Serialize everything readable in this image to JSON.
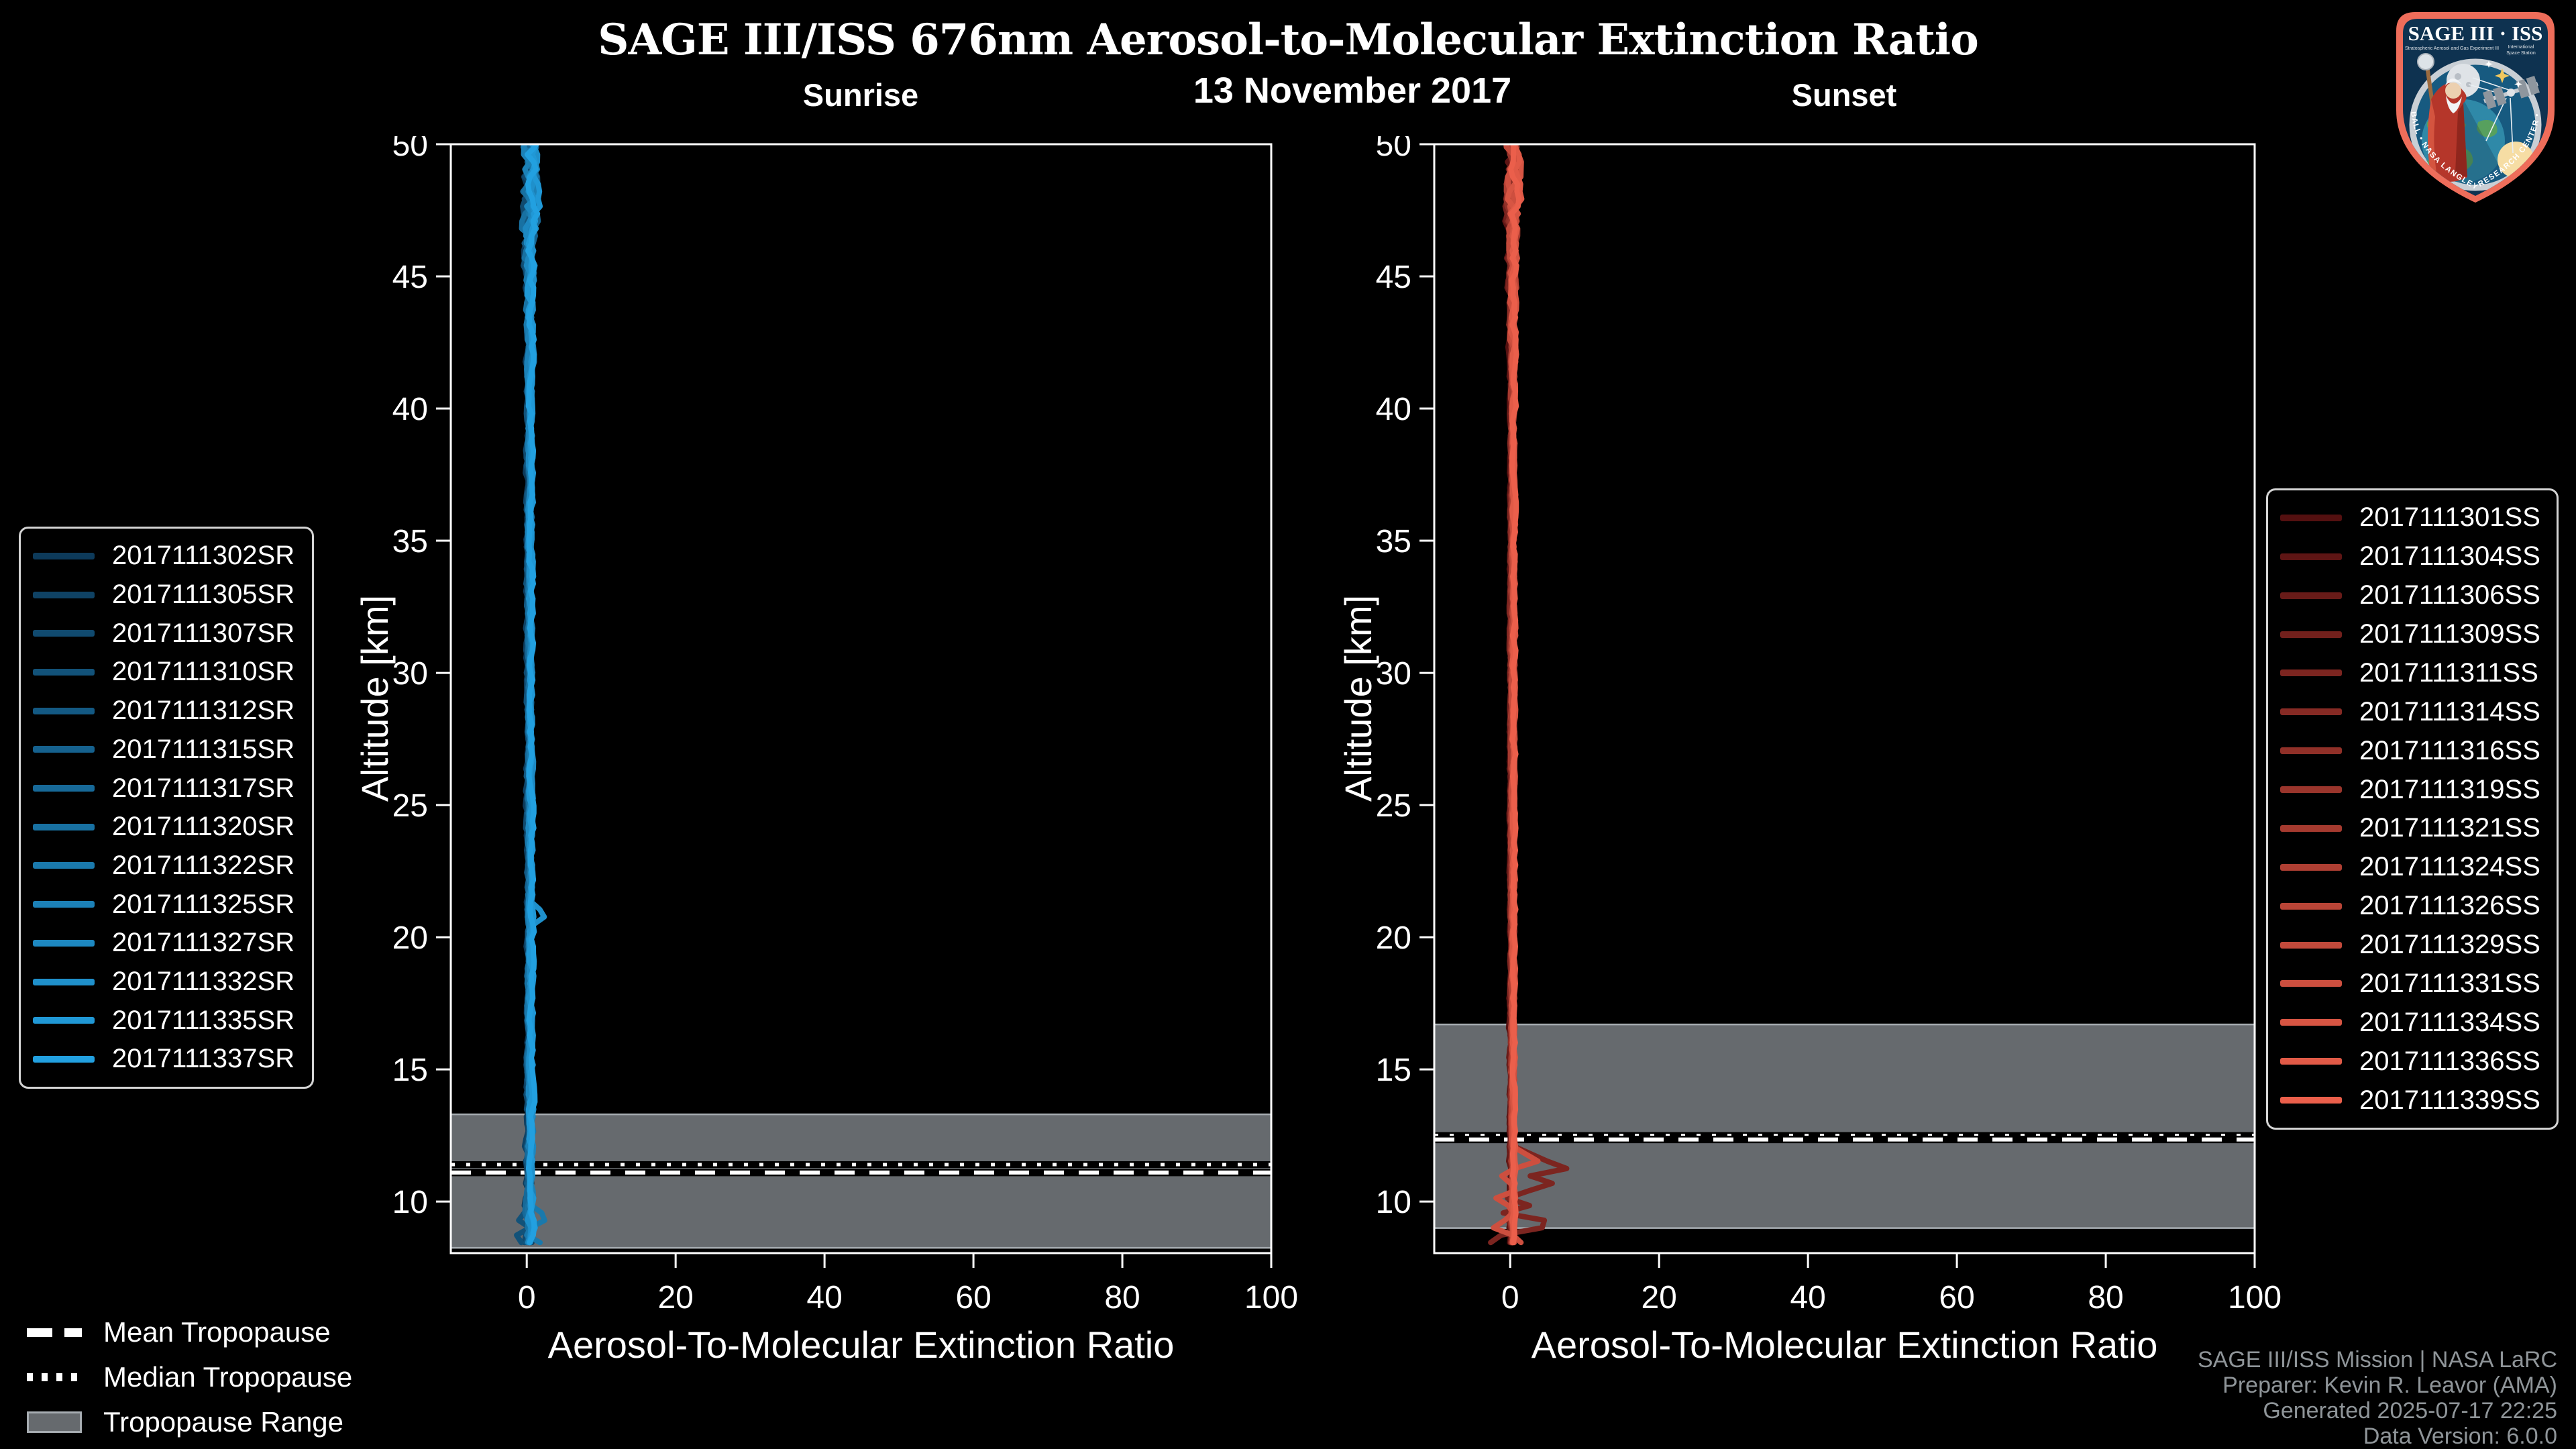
{
  "header": {
    "title": "SAGE III/ISS 676nm Aerosol-to-Molecular Extinction Ratio",
    "date": "13 November 2017"
  },
  "chart_data": {
    "type": "line",
    "title": "SAGE III/ISS 676nm Aerosol-to-Molecular Extinction Ratio",
    "subtitle": "13 November 2017",
    "style": {
      "background": "#000000",
      "axis_color": "#ffffff",
      "band_color": "#666a6e",
      "band_edge_color": "#a7adb2",
      "mean_line_color": "#ffffff",
      "mean_line_underlay": "#000000",
      "median_line_color": "#ffffff",
      "median_line_underlay": "#000000"
    },
    "panels": [
      {
        "id": "sunrise",
        "title": "Sunrise",
        "xlabel": "Aerosol-To-Molecular Extinction Ratio",
        "ylabel": "Altitude [km]",
        "xlim": [
          -10.2,
          100
        ],
        "ylim": [
          8.05,
          50
        ],
        "xticks": [
          0,
          20,
          40,
          60,
          80,
          100
        ],
        "yticks": [
          10,
          15,
          20,
          25,
          30,
          35,
          40,
          45,
          50
        ],
        "grid": false,
        "legend_position": "left",
        "tropopause": {
          "mean_km": 11.1,
          "median_km": 11.4,
          "range_km": [
            8.25,
            13.3
          ]
        },
        "noise_seed": 11,
        "profile": {
          "center": 0.4,
          "alt_top": 50.45,
          "alt_bottom": 8.2,
          "step": 0.28,
          "amps": [
            [
              50.45,
              1.6
            ],
            [
              47,
              1.5
            ],
            [
              44.5,
              0.8
            ],
            [
              40,
              0.5
            ],
            [
              15,
              0.5
            ],
            [
              12,
              0.7
            ],
            [
              8.2,
              0.8
            ]
          ]
        },
        "features": [
          {
            "series_index": 11,
            "points": [
              [
                21.35,
                0.5
              ],
              [
                21.05,
                1.7
              ],
              [
                20.8,
                2.5
              ],
              [
                20.55,
                1.1
              ],
              [
                20.3,
                0.45
              ]
            ]
          },
          {
            "series_index": 8,
            "points": [
              [
                9.9,
                0.4
              ],
              [
                9.6,
                1.9
              ],
              [
                9.35,
                2.7
              ],
              [
                9.1,
                1.2
              ],
              [
                8.85,
                -0.8
              ],
              [
                8.6,
                0.9
              ],
              [
                8.35,
                2.4
              ],
              [
                8.2,
                2.8
              ]
            ]
          },
          {
            "series_index": 3,
            "points": [
              [
                9.6,
                -0.3
              ],
              [
                9.3,
                -1.2
              ],
              [
                9.0,
                0.5
              ],
              [
                8.7,
                -1.5
              ],
              [
                8.4,
                -0.5
              ],
              [
                8.2,
                0.4
              ]
            ]
          }
        ],
        "series": [
          {
            "label": "2017111302SR",
            "color": "#0d3a5a"
          },
          {
            "label": "2017111305SR",
            "color": "#0f4264"
          },
          {
            "label": "2017111307SR",
            "color": "#104a6f"
          },
          {
            "label": "2017111310SR",
            "color": "#125279"
          },
          {
            "label": "2017111312SR",
            "color": "#135983"
          },
          {
            "label": "2017111315SR",
            "color": "#15618e"
          },
          {
            "label": "2017111317SR",
            "color": "#176998"
          },
          {
            "label": "2017111320SR",
            "color": "#1871a2"
          },
          {
            "label": "2017111322SR",
            "color": "#1a79ac"
          },
          {
            "label": "2017111325SR",
            "color": "#1c81b7"
          },
          {
            "label": "2017111327SR",
            "color": "#1d88c1"
          },
          {
            "label": "2017111332SR",
            "color": "#1f90cb"
          },
          {
            "label": "2017111335SR",
            "color": "#2098d6"
          },
          {
            "label": "2017111337SR",
            "color": "#22a0e0"
          }
        ]
      },
      {
        "id": "sunset",
        "title": "Sunset",
        "xlabel": "Aerosol-To-Molecular Extinction Ratio",
        "ylabel": "Altitude [km]",
        "xlim": [
          -10.2,
          100
        ],
        "ylim": [
          8.05,
          50
        ],
        "xticks": [
          0,
          20,
          40,
          60,
          80,
          100
        ],
        "yticks": [
          10,
          15,
          20,
          25,
          30,
          35,
          40,
          45,
          50
        ],
        "grid": false,
        "legend_position": "right",
        "tropopause": {
          "mean_km": 12.35,
          "median_km": 12.5,
          "range_km": [
            9.0,
            16.7
          ]
        },
        "noise_seed": 97,
        "profile": {
          "center": 0.3,
          "alt_top": 50.45,
          "alt_bottom": 8.2,
          "step": 0.28,
          "amps": [
            [
              50.45,
              1.4
            ],
            [
              47,
              1.2
            ],
            [
              44.5,
              0.7
            ],
            [
              40,
              0.4
            ],
            [
              13,
              0.4
            ],
            [
              8.2,
              0.5
            ]
          ]
        },
        "features": [
          {
            "series_index": 4,
            "points": [
              [
                12.1,
                0.4
              ],
              [
                11.75,
                3.2
              ],
              [
                11.45,
                5.6
              ],
              [
                11.2,
                8.1
              ],
              [
                11.0,
                2.2
              ],
              [
                10.75,
                6.3
              ],
              [
                10.45,
                3.0
              ],
              [
                10.15,
                -0.6
              ],
              [
                9.85,
                2.6
              ],
              [
                9.55,
                -1.2
              ],
              [
                9.3,
                4.6
              ],
              [
                9.0,
                4.3
              ],
              [
                8.7,
                -1.8
              ],
              [
                8.45,
                -2.6
              ],
              [
                8.2,
                1.2
              ]
            ]
          },
          {
            "series_index": 12,
            "points": [
              [
                11.95,
                0.3
              ],
              [
                11.6,
                4.5
              ],
              [
                11.25,
                0.6
              ],
              [
                10.9,
                -1.6
              ],
              [
                10.5,
                1.4
              ],
              [
                10.1,
                -2.2
              ],
              [
                9.7,
                0.9
              ],
              [
                9.3,
                -0.7
              ],
              [
                8.95,
                -2.6
              ],
              [
                8.6,
                2.1
              ],
              [
                8.2,
                0.3
              ]
            ]
          }
        ],
        "series": [
          {
            "label": "2017111301SS",
            "color": "#541010"
          },
          {
            "label": "2017111304SS",
            "color": "#5e1514"
          },
          {
            "label": "2017111306SS",
            "color": "#681b18"
          },
          {
            "label": "2017111309SS",
            "color": "#72201c"
          },
          {
            "label": "2017111311SS",
            "color": "#7c2520"
          },
          {
            "label": "2017111314SS",
            "color": "#862a24"
          },
          {
            "label": "2017111316SS",
            "color": "#903028"
          },
          {
            "label": "2017111319SS",
            "color": "#9a352c"
          },
          {
            "label": "2017111321SS",
            "color": "#a53a2f"
          },
          {
            "label": "2017111324SS",
            "color": "#af3f33"
          },
          {
            "label": "2017111326SS",
            "color": "#b94537"
          },
          {
            "label": "2017111329SS",
            "color": "#c34a3b"
          },
          {
            "label": "2017111331SS",
            "color": "#cd4f3f"
          },
          {
            "label": "2017111334SS",
            "color": "#d75543"
          },
          {
            "label": "2017111336SS",
            "color": "#e15a47"
          },
          {
            "label": "2017111339SS",
            "color": "#eb5f4b"
          }
        ]
      }
    ]
  },
  "tropopause_legend": {
    "mean": "Mean Tropopause",
    "median": "Median Tropopause",
    "range": "Tropopause Range"
  },
  "attribution": {
    "line1": "SAGE III/ISS Mission | NASA LaRC",
    "line2": "Preparer: Kevin R. Leavor (AMA)",
    "line3": "Generated 2025-07-17 22:25",
    "line4": "Data Version: 6.0.0"
  },
  "logo": {
    "title": "SAGE III · ISS",
    "subtitle_left": "Stratospheric Aerosol and Gas Experiment III",
    "subtitle_right_1": "International",
    "subtitle_right_2": "Space Station",
    "edge_text": "BALL • NASA LANGLEY RESEARCH CENTER • TAS-I • ESA",
    "border_color": "#ee6d5a"
  }
}
